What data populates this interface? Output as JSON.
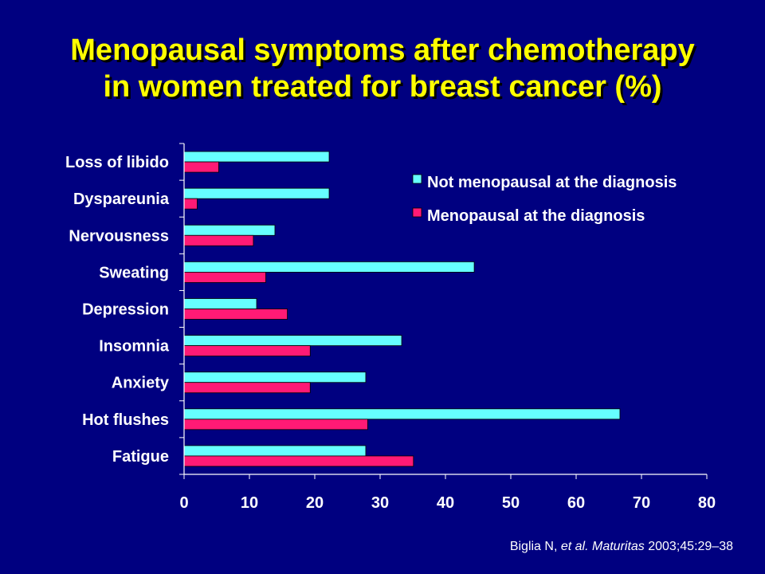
{
  "title": {
    "line1": "Menopausal symptoms after chemotherapy",
    "line2": "in women treated for breast cancer (%)"
  },
  "citation": {
    "authors": "Biglia N, ",
    "etal": "et al.",
    "journal": "Maturitas",
    "details": " 2003;45:29–38"
  },
  "colors": {
    "background": "#000080",
    "title": "#FFFF00",
    "not_menopausal": "#66FFFF",
    "menopausal": "#FF1A75",
    "axis": "#FFFFFF"
  },
  "chart_data": {
    "type": "bar",
    "orientation": "horizontal",
    "categories": [
      "Loss of libido",
      "Dyspareunia",
      "Nervousness",
      "Sweating",
      "Depression",
      "Insomnia",
      "Anxiety",
      "Hot flushes",
      "Fatigue"
    ],
    "series": [
      {
        "name": "Not menopausal at the diagnosis",
        "values": [
          22.2,
          22.2,
          13.9,
          44.4,
          11.1,
          33.3,
          27.8,
          66.7,
          27.8
        ]
      },
      {
        "name": "Menopausal at the diagnosis",
        "values": [
          5.3,
          2.0,
          10.6,
          12.5,
          15.8,
          19.3,
          19.3,
          28.1,
          35.1
        ]
      }
    ],
    "xlim": [
      0,
      80
    ],
    "xticks": [
      "0",
      "10",
      "20",
      "30",
      "40",
      "50",
      "60",
      "70",
      "80"
    ],
    "grid": false,
    "legend_position": "top-right"
  }
}
